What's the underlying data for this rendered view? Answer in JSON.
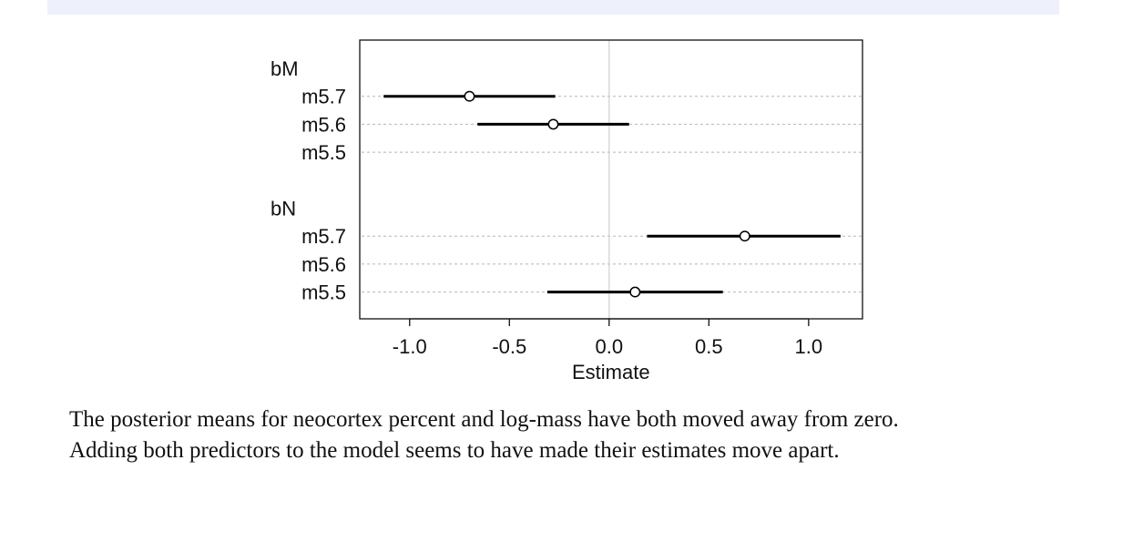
{
  "chart_data": {
    "type": "dot-interval",
    "xlabel": "Estimate",
    "xlim": [
      -1.25,
      1.27
    ],
    "xticks": [
      -1.0,
      -0.5,
      0.0,
      0.5,
      1.0
    ],
    "xtick_labels": [
      "-1.0",
      "-0.5",
      "0.0",
      "0.5",
      "1.0"
    ],
    "zero_line": 0,
    "groups": [
      {
        "label": "bM",
        "rows": [
          {
            "label": "m5.7",
            "mean": -0.7,
            "lower": -1.13,
            "upper": -0.27
          },
          {
            "label": "m5.6",
            "mean": -0.28,
            "lower": -0.66,
            "upper": 0.1
          },
          {
            "label": "m5.5",
            "mean": null,
            "lower": null,
            "upper": null
          }
        ]
      },
      {
        "label": "bN",
        "rows": [
          {
            "label": "m5.7",
            "mean": 0.68,
            "lower": 0.19,
            "upper": 1.16
          },
          {
            "label": "m5.6",
            "mean": null,
            "lower": null,
            "upper": null
          },
          {
            "label": "m5.5",
            "mean": 0.13,
            "lower": -0.31,
            "upper": 0.57
          }
        ]
      }
    ]
  },
  "caption": {
    "line1": "The posterior means for neocortex percent and log-mass have both moved away from zero.",
    "line2": "Adding both predictors to the model seems to have made their estimates move apart."
  }
}
